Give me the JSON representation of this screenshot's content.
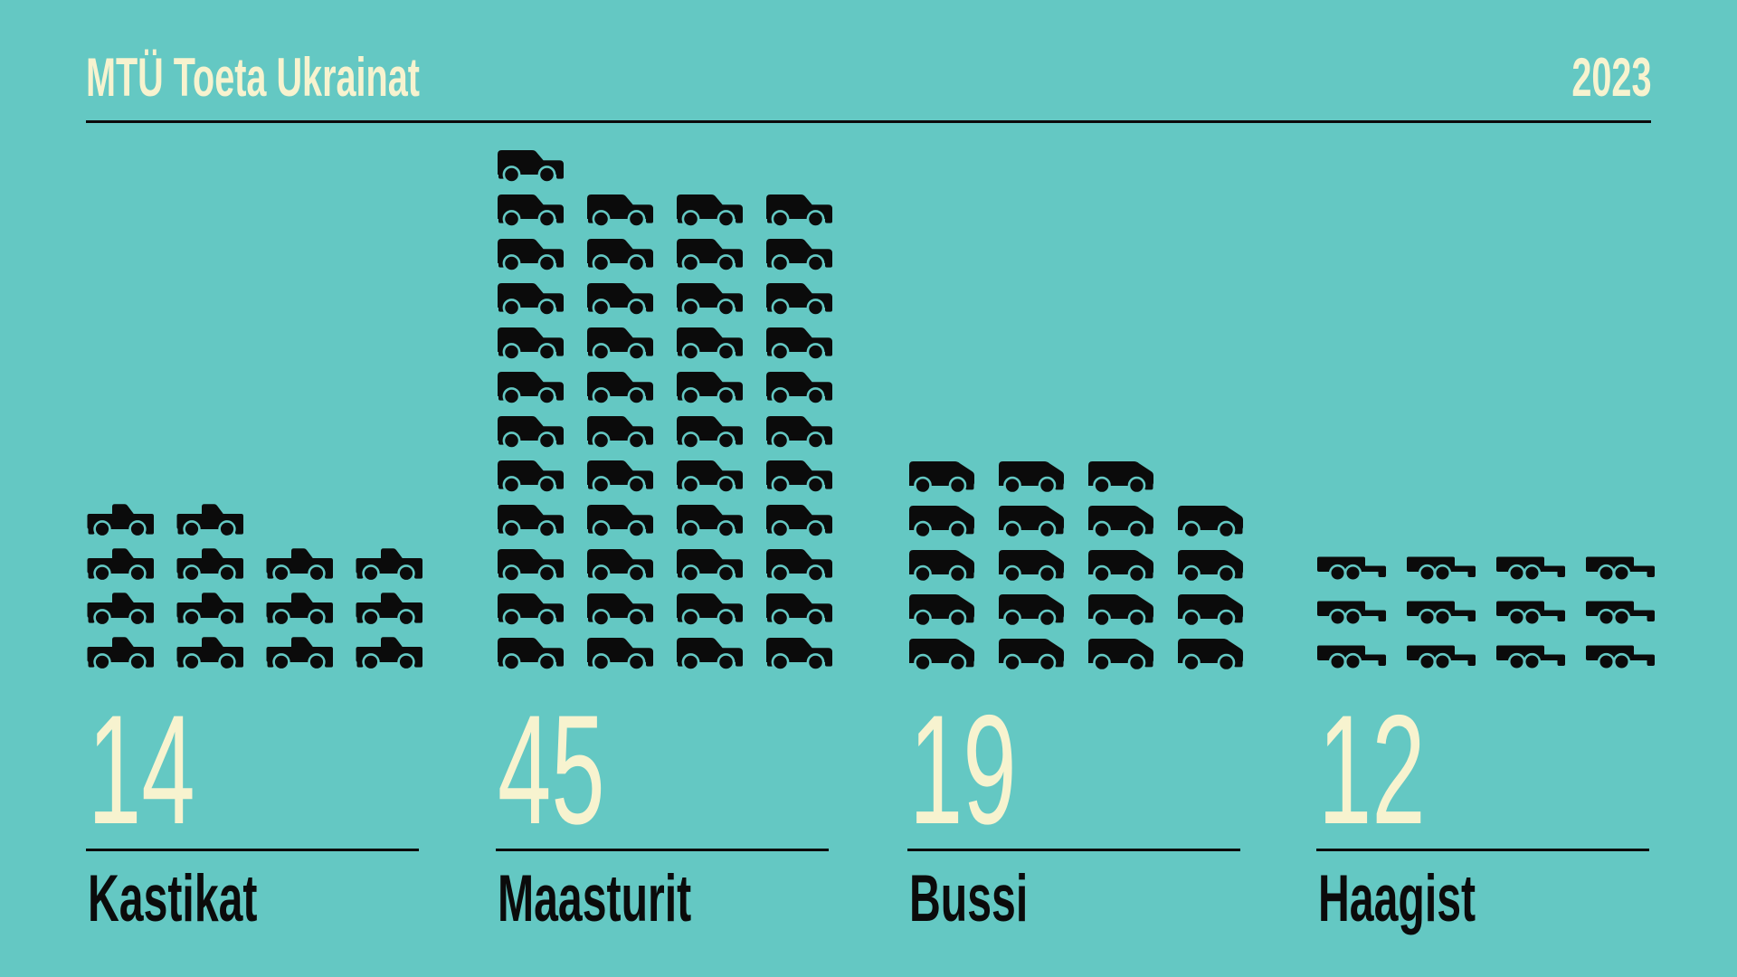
{
  "header": {
    "title": "MTÜ Toeta Ukrainat",
    "year": "2023"
  },
  "chart_data": {
    "type": "bar",
    "variant": "pictogram",
    "title": "MTÜ Toeta Ukrainat",
    "subtitle": "2023",
    "categories": [
      "Kastikat",
      "Maasturit",
      "Bussi",
      "Haagist"
    ],
    "values": [
      14,
      45,
      19,
      12
    ],
    "icons": [
      "pickup-truck",
      "suv",
      "van",
      "trailer"
    ],
    "icons_per_row": 4,
    "vehicles_per_icon": 1,
    "legend_position": "none",
    "grid": "off",
    "colors": {
      "background": "#64C8C3",
      "ink": "#0B0B0B",
      "cream": "#F7F3CF"
    }
  }
}
